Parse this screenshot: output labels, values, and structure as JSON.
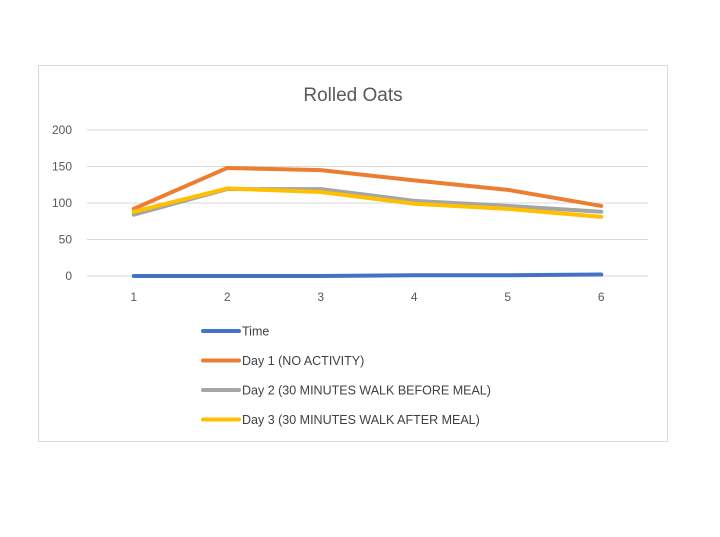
{
  "chart_data": {
    "type": "line",
    "title": "Rolled Oats",
    "xlabel": "",
    "ylabel": "",
    "categories": [
      "1",
      "2",
      "3",
      "4",
      "5",
      "6"
    ],
    "ylim": [
      0,
      200
    ],
    "yticks": [
      0,
      50,
      100,
      150,
      200
    ],
    "grid": true,
    "legend_position": "bottom",
    "series": [
      {
        "name": "Time",
        "color": "#4472C4",
        "values": [
          0,
          0,
          0,
          1,
          1,
          2
        ]
      },
      {
        "name": "Day 1 (NO ACTIVITY)",
        "color": "#ED7D31",
        "values": [
          92,
          148,
          145,
          131,
          118,
          96
        ]
      },
      {
        "name": "Day 2 (30 MINUTES WALK BEFORE MEAL)",
        "color": "#A5A5A5",
        "values": [
          84,
          119,
          119,
          103,
          96,
          88
        ]
      },
      {
        "name": "Day 3 (30 MINUTES WALK AFTER MEAL)",
        "color": "#FFC000",
        "values": [
          88,
          120,
          115,
          99,
          92,
          81
        ]
      }
    ]
  }
}
